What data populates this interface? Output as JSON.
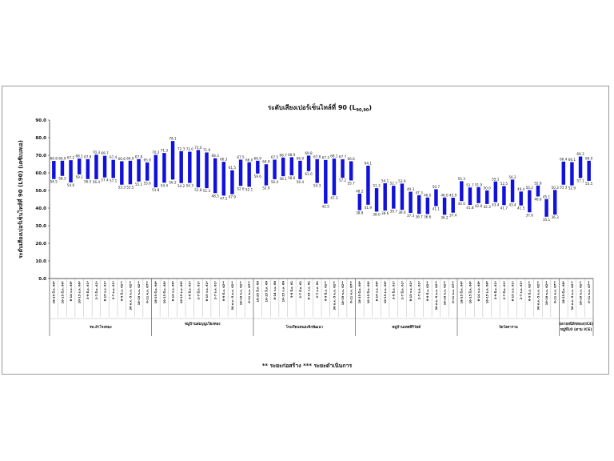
{
  "chart_data": {
    "type": "bar",
    "title_main": "ระดับเสียงเปอร์เซ็นไทล์ที่ 90 (L",
    "title_sub": "90,90",
    "title_end": ")",
    "ylabel": "ระดับเสียงเปอร์เซ็นไทล์ที่ 90 (L90) (เดซิเบลเอ)",
    "ylim": [
      0,
      90
    ],
    "yticks": [
      "0.0",
      "10.0",
      "20.0",
      "30.0",
      "40.0",
      "50.0",
      "60.0",
      "70.0",
      "80.0",
      "90.0"
    ],
    "color": "#1111dd",
    "groups": [
      {
        "name": "รพ.สำโรงทอง",
        "categories": [
          "18-25 มี.ค. 60*",
          "10-15 มี.ค. 60*",
          "8-14 ก.ย. 60*",
          "10-15 ธ.ค. 60*",
          "3-9 มิ.ย. 61*",
          "2-7 มี.ค. 61*",
          "8-15 ก.ย. 61*",
          "2-7 ธ.ค. 61*",
          "6-9 มิ.ย. 62**",
          "30 พ.ค.-5 ต.ค. 62**",
          "18-19 พ.ค. 62**",
          "6-11 พ.ค. 67**"
        ],
        "low": [
          56.5,
          58.3,
          54.6,
          59.1,
          56.5,
          56.4,
          57.4,
          57.1,
          53.3,
          53.5,
          55.1,
          55.6
        ],
        "high": [
          66.8,
          66.9,
          67.2,
          68.1,
          67.8,
          70.3,
          69.7,
          67.4,
          66.6,
          66.9,
          67.8,
          65.9
        ]
      },
      {
        "name": "หมู่บ้านสมบุญเวียงทอง",
        "categories": [
          "18-25 มี.ค. 60*",
          "10-15 มี.ค. 60*",
          "8-14 ก.ย. 60*",
          "10-15 ธ.ค. 60*",
          "3-9 มิ.ย. 61*",
          "2-7 มี.ค. 61*",
          "8-15 ก.ย. 61*",
          "2-7 ธ.ค. 61*",
          "6-9 มิ.ย. 62**",
          "30 พ.ค.-5 ต.ค. 62**",
          "18-19 พ.ค. 62**",
          "6-11 พ.ค. 67**"
        ],
        "low": [
          51.8,
          54.4,
          56.2,
          54.2,
          54.3,
          51.8,
          51.3,
          48.5,
          47.1,
          47.9,
          52.6,
          52.1
        ],
        "high": [
          70.2,
          71.3,
          78.1,
          72.3,
          72.0,
          73.0,
          71.6,
          68.3,
          66.3,
          61.5,
          67.5,
          66.0
        ]
      },
      {
        "name": "โรงเรียนหนองจิกพัฒนา",
        "categories": [
          "18-25 มี.ค. 60",
          "10-15 มี.ค. 60",
          "8-14 ก.ย. 60",
          "10-15 ธ.ค. 60",
          "3-9 มิ.ย. 61",
          "2-7 มี.ค. 61",
          "8-15 ก.ย. 61",
          "2-7 ธ.ค. 61",
          "6-9 มิ.ย. 62**",
          "30 พ.ค.-5 ต.ค. 62**",
          "18-19 พ.ค. 62**",
          "6-11 พ.ค. 67**"
        ],
        "low": [
          59.6,
          52.9,
          56.4,
          58.1,
          58.6,
          56.4,
          61.0,
          54.3,
          42.5,
          47.3,
          57.2,
          55.7
        ],
        "high": [
          66.9,
          64.9,
          67.5,
          68.7,
          68.9,
          66.9,
          69.8,
          67.8,
          67.3,
          68.1,
          67.7,
          66.6
        ]
      },
      {
        "name": "หมู่บ้านเทศศิริวัสด์",
        "categories": [
          "18-25 มี.ค. 60*",
          "10-15 มี.ค. 60*",
          "8-14 ก.ย. 60*",
          "10-15 ธ.ค. 60*",
          "3-9 มิ.ย. 61*",
          "2-7 มี.ค. 61*",
          "8-15 ก.ย. 61*",
          "2-7 ธ.ค. 61*",
          "6-9 มิ.ย. 62**",
          "30 พ.ค.-5 ต.ค. 62**",
          "18-19 พ.ค. 62**",
          "6-11 พ.ค. 67**"
        ],
        "low": [
          38.8,
          41.9,
          38.0,
          38.6,
          39.7,
          39.0,
          37.3,
          36.7,
          36.6,
          41.1,
          36.2,
          37.4
        ],
        "high": [
          48.2,
          64.1,
          51.3,
          54.1,
          52.7,
          53.9,
          49.3,
          47.3,
          46.0,
          50.7,
          46.0,
          45.9
        ]
      },
      {
        "name": "วัดวังตาราม",
        "categories": [
          "18-25 มี.ค. 60*",
          "10-15 มี.ค. 60*",
          "8-14 ก.ย. 60*",
          "10-15 ธ.ค. 60*",
          "3-9 มิ.ย. 61*",
          "2-7 มี.ค. 61*",
          "8-15 ก.ย. 61*",
          "2-7 ธ.ค. 61*",
          "6-9 มิ.ย. 62**",
          "30 พ.ค.-5 ต.ค. 62**",
          "18-19 พ.ค. 62**",
          "6-11 พ.ค. 67**"
        ],
        "low": [
          44.0,
          41.8,
          42.8,
          42.3,
          43.4,
          41.7,
          43.4,
          41.5,
          37.6,
          46.6,
          35.1,
          36.3
        ],
        "high": [
          55.3,
          51.7,
          51.9,
          50.0,
          55.1,
          52.5,
          56.2,
          49.4,
          50.2,
          52.8,
          45.1,
          50.3
        ]
      },
      {
        "name": "ปลายสนิลิขทอง(ICE) หมู่ที่10 (ตาม ICE)",
        "categories": [
          "18-25 มี.ค. 60*",
          "30 พ.ค.-5 ต.ค. 62**",
          "18-19 พ.ค. 62**",
          "6-11 พ.ค. 67**"
        ],
        "low": [
          53.3,
          52.9,
          57.1,
          55.5
        ],
        "high": [
          66.4,
          66.1,
          69.3,
          66.9
        ]
      }
    ]
  },
  "footnote": "** ระยะก่อสร้าง    *** ระยะดำเนินการ"
}
